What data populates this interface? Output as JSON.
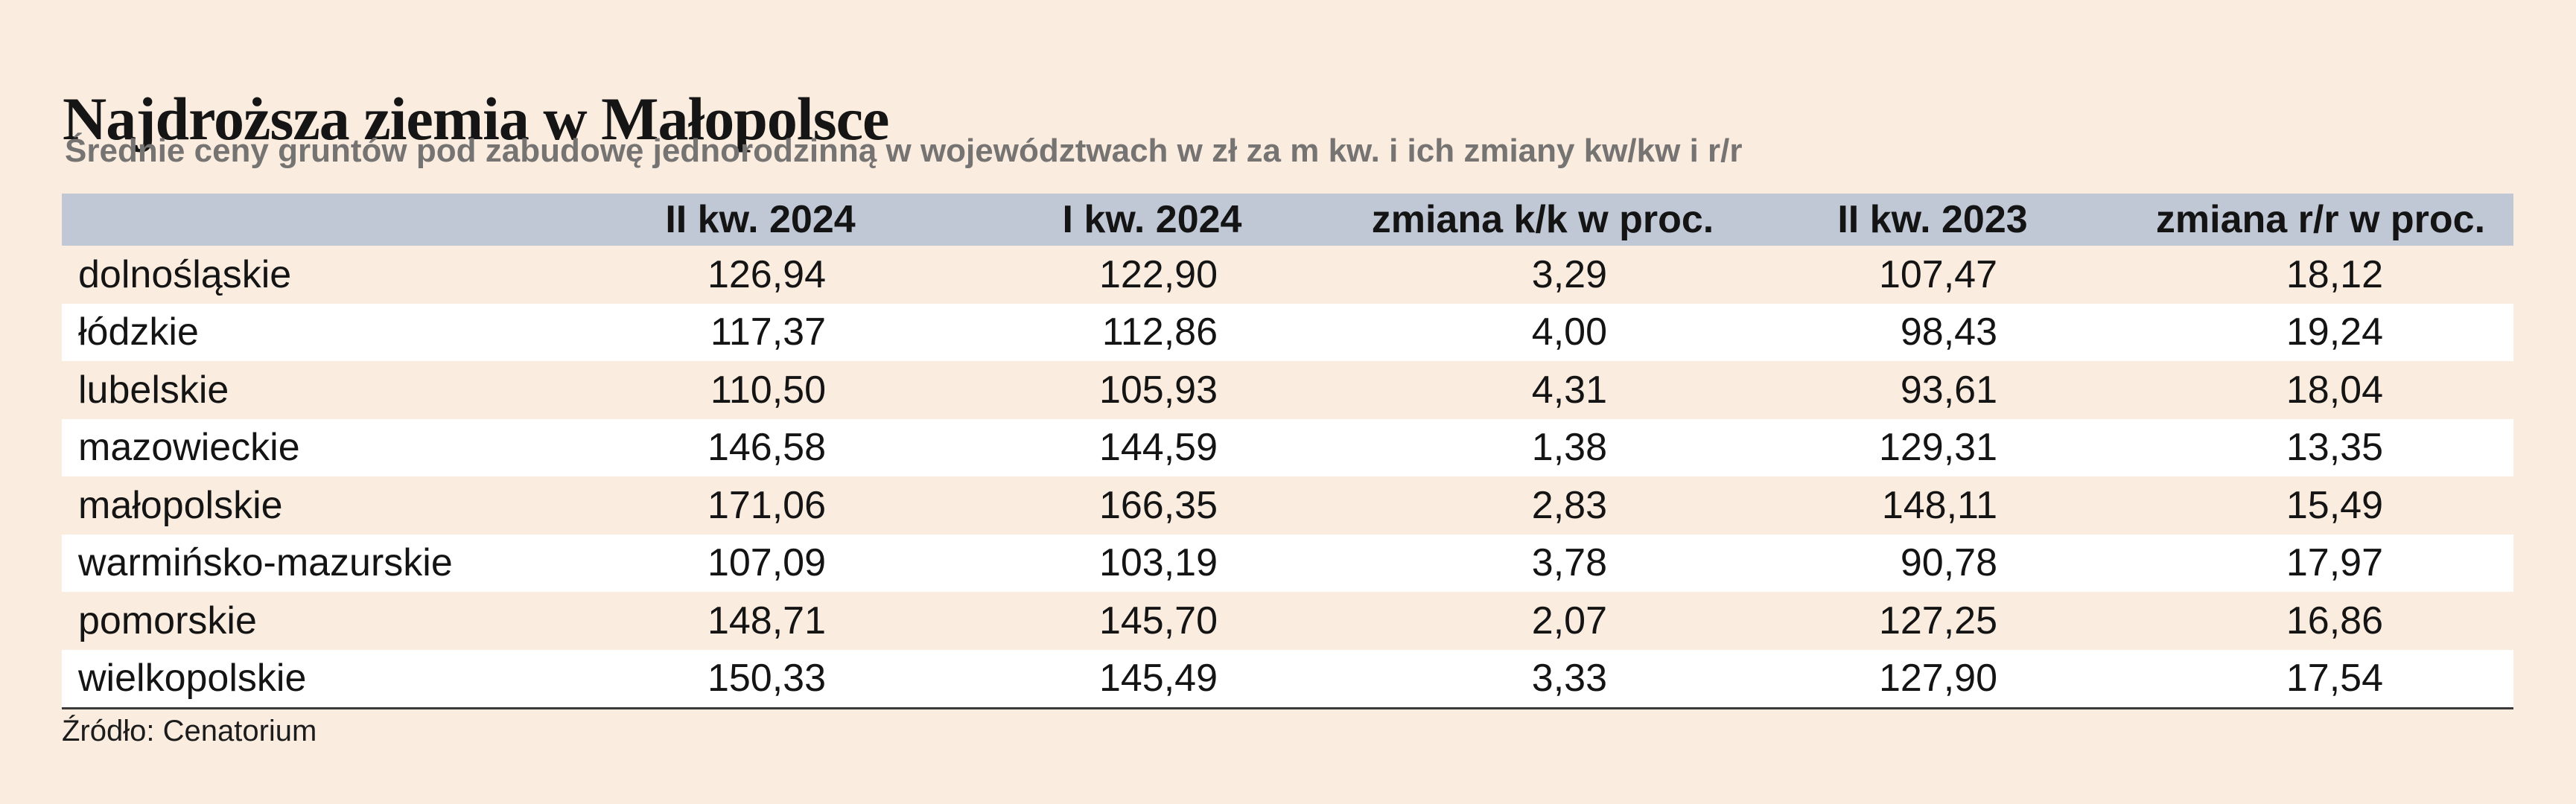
{
  "colors": {
    "page_background": "#faecdf",
    "header_row_background": "#c0c7d5",
    "stripe_row_background": "#ffffff",
    "subtitle_text": "#767472",
    "divider_line": "#3a3a3a"
  },
  "chart_data": {
    "type": "table",
    "title": "Najdroższa ziemia w Małopolsce",
    "subtitle": "Średnie ceny gruntów pod zabudowę jednorodzinną w województwach w zł za m kw. i ich zmiany kw/kw i r/r",
    "columns": [
      "",
      "II kw. 2024",
      "I kw. 2024",
      "zmiana k/k w proc.",
      "II kw. 2023",
      "zmiana r/r w proc."
    ],
    "rows": [
      {
        "region": "dolnośląskie",
        "values": [
          "126,94",
          "122,90",
          "3,29",
          "107,47",
          "18,12"
        ]
      },
      {
        "region": "łódzkie",
        "values": [
          "117,37",
          "112,86",
          "4,00",
          "98,43",
          "19,24"
        ]
      },
      {
        "region": "lubelskie",
        "values": [
          "110,50",
          "105,93",
          "4,31",
          "93,61",
          "18,04"
        ]
      },
      {
        "region": "mazowieckie",
        "values": [
          "146,58",
          "144,59",
          "1,38",
          "129,31",
          "13,35"
        ]
      },
      {
        "region": "małopolskie",
        "values": [
          "171,06",
          "166,35",
          "2,83",
          "148,11",
          "15,49"
        ]
      },
      {
        "region": "warmińsko-mazurskie",
        "values": [
          "107,09",
          "103,19",
          "3,78",
          "90,78",
          "17,97"
        ]
      },
      {
        "region": "pomorskie",
        "values": [
          "148,71",
          "145,70",
          "2,07",
          "127,25",
          "16,86"
        ]
      },
      {
        "region": "wielkopolskie",
        "values": [
          "150,33",
          "145,49",
          "3,33",
          "127,90",
          "17,54"
        ]
      }
    ],
    "source": "Źródło: Cenatorium",
    "layout": {
      "grid": "off",
      "value_alignment": "right",
      "header_alignment": "center",
      "row_striping": "odd peach / even white"
    }
  }
}
